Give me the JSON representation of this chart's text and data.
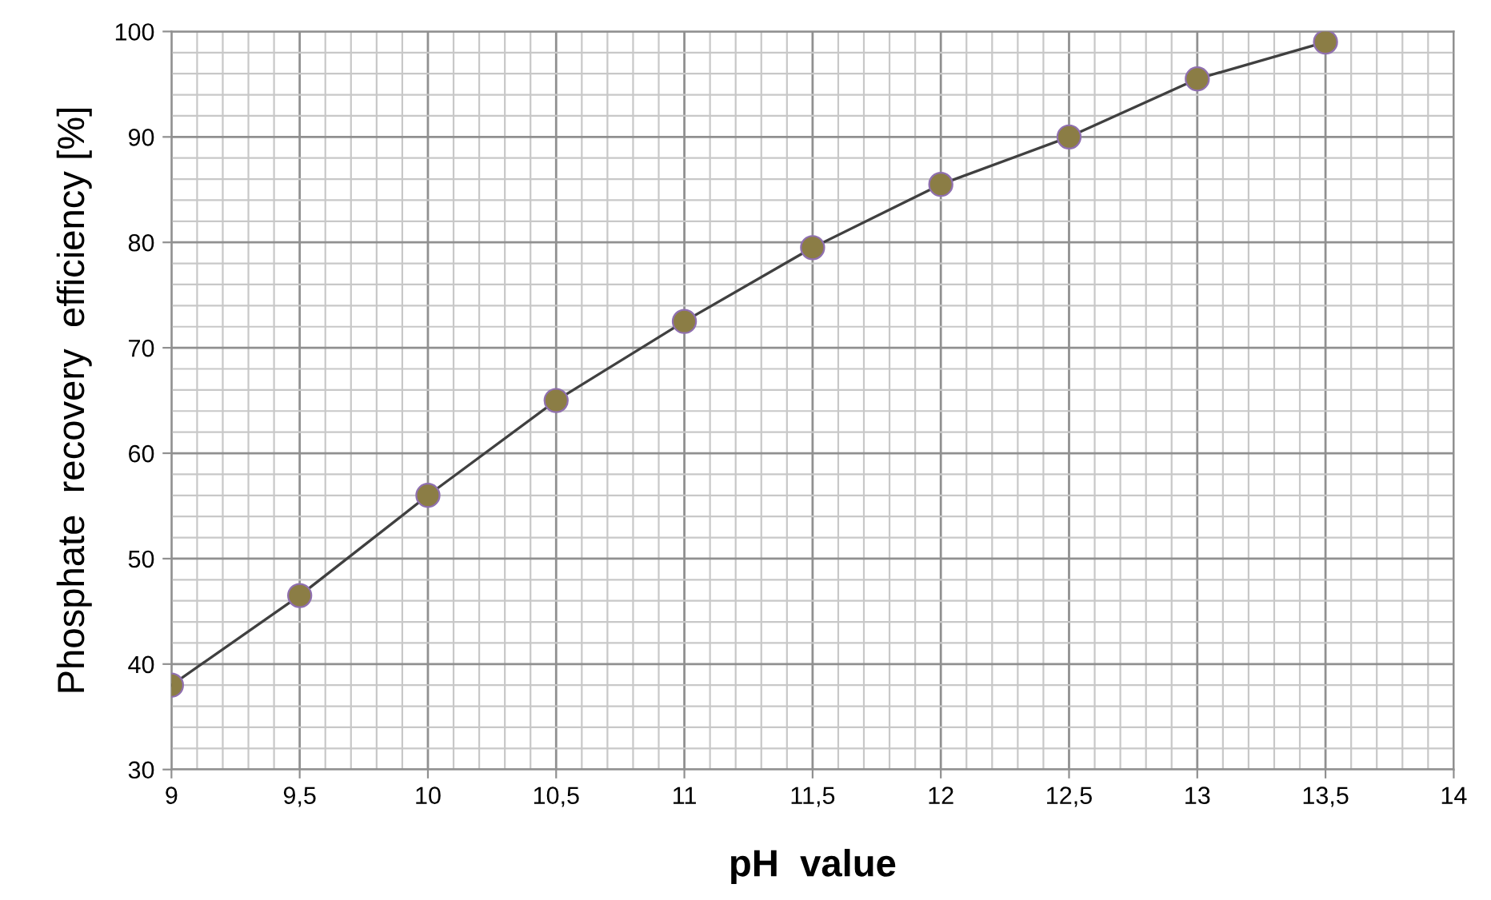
{
  "chart_data": {
    "type": "scatter",
    "xlabel": "pH  value",
    "ylabel": "Phosphate  recovery  efficiency [%]",
    "x": [
      9,
      9.5,
      10,
      10.5,
      11,
      11.5,
      12,
      12.5,
      13,
      13.5
    ],
    "series": [
      {
        "type": "line",
        "color": "#404040",
        "marker": "none",
        "line_style": "solid",
        "x": [
          9,
          9.5,
          10,
          10.5,
          11,
          11.5,
          12,
          12.5,
          13,
          13.5
        ],
        "values": [
          38,
          46.5,
          56,
          65,
          72.5,
          79.5,
          85.5,
          90,
          95.5,
          99
        ]
      },
      {
        "color": "#8b7d45",
        "marker": "circle",
        "values": [
          38,
          46.5,
          56,
          65,
          72.5,
          79.5,
          85.5,
          90,
          95.5,
          99
        ]
      }
    ],
    "xlim": [
      9,
      14
    ],
    "ylim": [
      30,
      100
    ],
    "xticks": [
      9,
      {
        "value": 9.5,
        "label": "9,5"
      },
      10,
      {
        "value": 10.5,
        "label": "10,5"
      },
      11,
      {
        "value": 11.5,
        "label": "11,5"
      },
      12,
      {
        "value": 12.5,
        "label": "12,5"
      },
      13,
      {
        "value": 13.5,
        "label": "13,5"
      },
      14
    ],
    "yticks": [
      30,
      40,
      50,
      60,
      70,
      80,
      90,
      100
    ],
    "grid": true,
    "legend": false
  }
}
